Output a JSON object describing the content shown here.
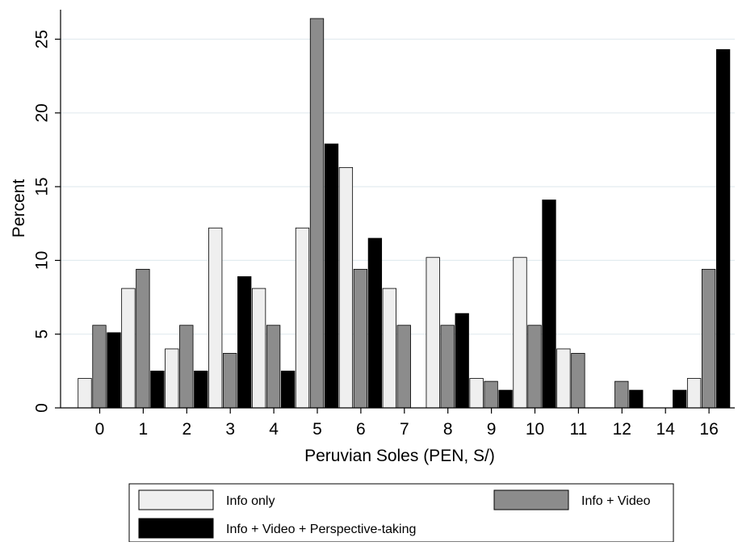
{
  "chart_data": {
    "type": "bar",
    "title": "",
    "xlabel": "Peruvian Soles (PEN, S/)",
    "ylabel": "Percent",
    "ylim": [
      0,
      27
    ],
    "yticks": [
      0,
      5,
      10,
      15,
      20,
      25
    ],
    "grid": true,
    "legend_position": "bottom",
    "categories": [
      "0",
      "1",
      "2",
      "3",
      "4",
      "5",
      "6",
      "7",
      "8",
      "9",
      "10",
      "11",
      "12",
      "14",
      "16"
    ],
    "series": [
      {
        "name": "Info only",
        "color": "#efefef",
        "values": [
          2.0,
          8.1,
          4.0,
          12.2,
          8.1,
          12.2,
          16.3,
          8.1,
          10.2,
          2.0,
          10.2,
          4.0,
          0,
          0,
          2.0
        ]
      },
      {
        "name": "Info + Video",
        "color": "#8c8c8c",
        "values": [
          5.6,
          9.4,
          5.6,
          3.7,
          5.6,
          26.4,
          9.4,
          5.6,
          5.6,
          1.8,
          5.6,
          3.7,
          1.8,
          0,
          9.4
        ]
      },
      {
        "name": "Info + Video + Perspective-taking",
        "color": "#000000",
        "values": [
          5.1,
          2.5,
          2.5,
          8.9,
          2.5,
          17.9,
          11.5,
          0,
          6.4,
          1.2,
          14.1,
          0,
          1.2,
          1.2,
          24.3
        ]
      }
    ]
  }
}
